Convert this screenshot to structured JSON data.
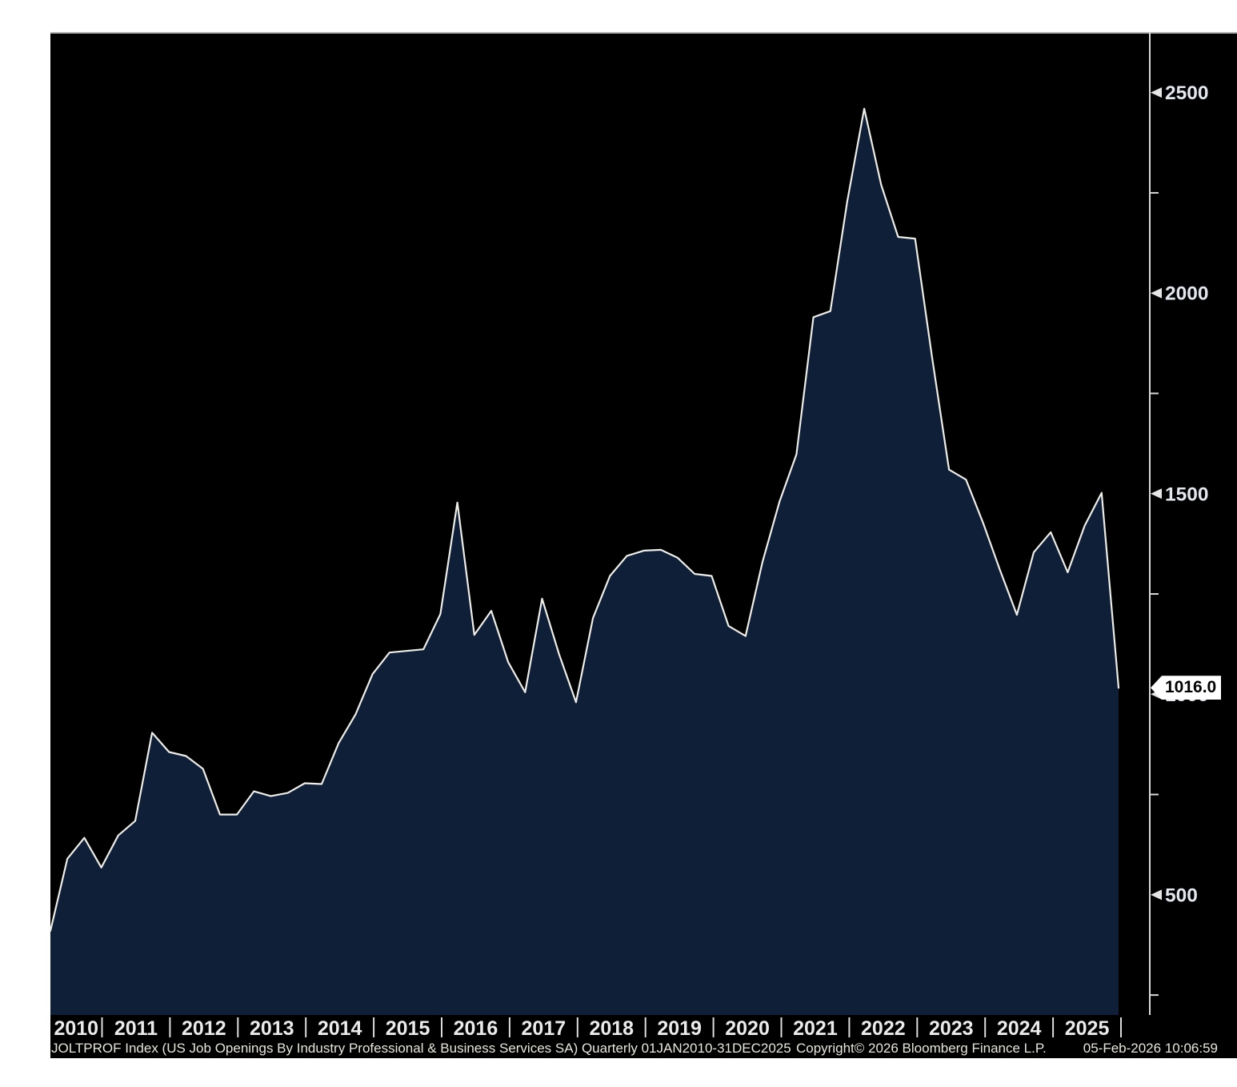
{
  "chart_data": {
    "type": "area",
    "title": "JOLTPROF Index (US Job Openings By Industry Professional & Business Services SA)",
    "frequency": "Quarterly",
    "x_start": "2010-Q1",
    "x_end": "2025-Q4",
    "x_step": "quarter",
    "categories_years": [
      "2010",
      "2011",
      "2012",
      "2013",
      "2014",
      "2015",
      "2016",
      "2017",
      "2018",
      "2019",
      "2020",
      "2021",
      "2022",
      "2023",
      "2024",
      "2025"
    ],
    "series": [
      {
        "name": "JOLTPROF Index",
        "values": [
          410,
          590,
          642,
          568,
          648,
          684,
          904,
          856,
          846,
          814,
          700,
          700,
          758,
          746,
          754,
          778,
          776,
          878,
          950,
          1050,
          1104,
          1108,
          1112,
          1200,
          1478,
          1148,
          1208,
          1080,
          1005,
          1238,
          1100,
          980,
          1190,
          1295,
          1345,
          1358,
          1360,
          1340,
          1300,
          1295,
          1170,
          1145,
          1330,
          1480,
          1598,
          1940,
          1955,
          2230,
          2460,
          2270,
          2140,
          2136,
          1840,
          1560,
          1535,
          1428,
          1310,
          1198,
          1354,
          1404,
          1304,
          1420,
          1502,
          1016
        ]
      }
    ],
    "ylim": [
      200,
      2650
    ],
    "y_major_ticks": [
      "500",
      "1000",
      "1500",
      "2000",
      "2500"
    ],
    "y_minor_ticks": [
      250,
      750,
      1250,
      1750,
      2250
    ],
    "grid": "off",
    "legend": "none",
    "last_value": 1016.0
  },
  "axis_marker": {
    "label": "1016.0"
  },
  "footer": {
    "left": "JOLTPROF Index (US Job Openings By Industry Professional & Business Services SA) Quarterly 01JAN2010-31DEC2025",
    "copyright": "Copyright© 2026 Bloomberg Finance L.P.",
    "timestamp": "05-Feb-2026 10:06:59"
  },
  "colors": {
    "page_background": "#ffffff",
    "panel_background": "#000000",
    "area_fill": "#101f38",
    "series_line": "#eeede7",
    "axis_line": "#d8d8d8",
    "top_border": "#b3b3b3",
    "tick_mark": "#e6e6e6",
    "tick_label": "#e3e8ef",
    "year_label": "#ebebeb",
    "band_separator": "#dcdcdc",
    "footer_text": "#e8e5da",
    "badge_background": "#ffffff",
    "badge_text": "#000000"
  }
}
